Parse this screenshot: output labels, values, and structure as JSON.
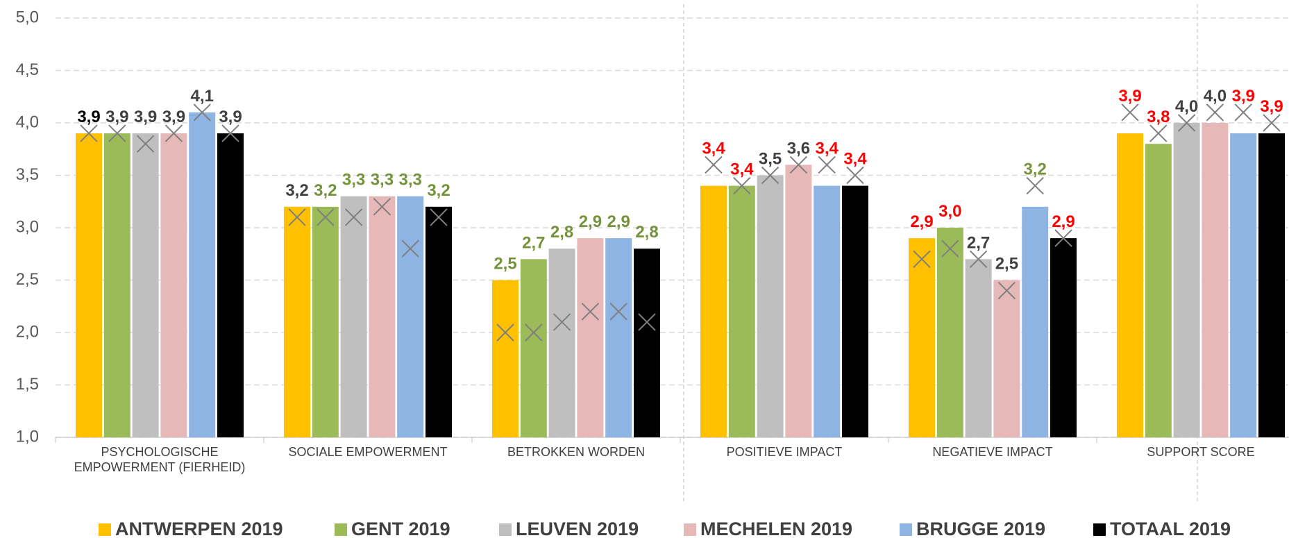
{
  "chart_data": {
    "type": "bar",
    "categories": [
      "PSYCHOLOGISCHE EMPOWERMENT (FIERHEID)",
      "SOCIALE EMPOWERMENT",
      "BETROKKEN WORDEN",
      "POSITIEVE IMPACT",
      "NEGATIEVE IMPACT",
      "SUPPORT SCORE"
    ],
    "ylim": [
      1,
      5
    ],
    "yticks": [
      {
        "value": 1,
        "label": "1,0"
      },
      {
        "value": 1.5,
        "label": "1,5"
      },
      {
        "value": 2,
        "label": "2,0"
      },
      {
        "value": 2.5,
        "label": "2,5"
      },
      {
        "value": 3,
        "label": "3,0"
      },
      {
        "value": 3.5,
        "label": "3,5"
      },
      {
        "value": 4,
        "label": "4,0"
      },
      {
        "value": 4.5,
        "label": "4,5"
      },
      {
        "value": 5,
        "label": "5,0"
      }
    ],
    "grid": true,
    "series": [
      {
        "name": "ANTWERPEN 2019",
        "color": "#ffc000",
        "values": [
          3.9,
          3.2,
          2.5,
          3.4,
          2.9,
          3.9
        ],
        "value_labels": [
          "3,9",
          "3,2",
          "2,5",
          "3,4",
          "2,9",
          "3,9"
        ],
        "marker_values": [
          3.9,
          3.1,
          2.0,
          3.6,
          2.7,
          4.1
        ],
        "value_label_colors": [
          "#000000",
          "#404040",
          "#76923c",
          "#ff0000",
          "#ff0000",
          "#ff0000"
        ]
      },
      {
        "name": "GENT 2019",
        "color": "#9bbb59",
        "values": [
          3.9,
          3.2,
          2.7,
          3.4,
          3.0,
          3.8
        ],
        "value_labels": [
          "3,9",
          "3,2",
          "2,7",
          "3,4",
          "3,0",
          "3,8"
        ],
        "marker_values": [
          3.9,
          3.1,
          2.0,
          3.4,
          2.8,
          3.9
        ],
        "value_label_colors": [
          "#404040",
          "#76923c",
          "#76923c",
          "#ff0000",
          "#ff0000",
          "#ff0000"
        ]
      },
      {
        "name": "LEUVEN 2019",
        "color": "#bfbfbf",
        "values": [
          3.9,
          3.3,
          2.8,
          3.5,
          2.7,
          4.0
        ],
        "value_labels": [
          "3,9",
          "3,3",
          "2,8",
          "3,5",
          "2,7",
          "4,0"
        ],
        "marker_values": [
          3.8,
          3.1,
          2.1,
          3.5,
          2.7,
          4.0
        ],
        "value_label_colors": [
          "#404040",
          "#76923c",
          "#76923c",
          "#404040",
          "#404040",
          "#404040"
        ]
      },
      {
        "name": "MECHELEN 2019",
        "color": "#e6b9b8",
        "values": [
          3.9,
          3.3,
          2.9,
          3.6,
          2.5,
          4.0
        ],
        "value_labels": [
          "3,9",
          "3,3",
          "2,9",
          "3,6",
          "2,5",
          "4,0"
        ],
        "marker_values": [
          3.9,
          3.2,
          2.2,
          3.6,
          2.4,
          4.1
        ],
        "value_label_colors": [
          "#404040",
          "#76923c",
          "#76923c",
          "#404040",
          "#404040",
          "#404040"
        ]
      },
      {
        "name": "BRUGGE 2019",
        "color": "#8db4e2",
        "values": [
          4.1,
          3.3,
          2.9,
          3.4,
          3.2,
          3.9
        ],
        "value_labels": [
          "4,1",
          "3,3",
          "2,9",
          "3,4",
          "3,2",
          "3,9"
        ],
        "marker_values": [
          4.1,
          2.8,
          2.2,
          3.6,
          3.4,
          4.1
        ],
        "value_label_colors": [
          "#404040",
          "#76923c",
          "#76923c",
          "#ff0000",
          "#76923c",
          "#ff0000"
        ]
      },
      {
        "name": "TOTAAL 2019",
        "color": "#000000",
        "values": [
          3.9,
          3.2,
          2.8,
          3.4,
          2.9,
          3.9
        ],
        "value_labels": [
          "3,9",
          "3,2",
          "2,8",
          "3,4",
          "2,9",
          "3,9"
        ],
        "marker_values": [
          3.9,
          3.1,
          2.1,
          3.5,
          2.9,
          4.0
        ],
        "value_label_colors": [
          "#404040",
          "#76923c",
          "#76923c",
          "#ff0000",
          "#ff0000",
          "#ff0000"
        ]
      }
    ]
  }
}
